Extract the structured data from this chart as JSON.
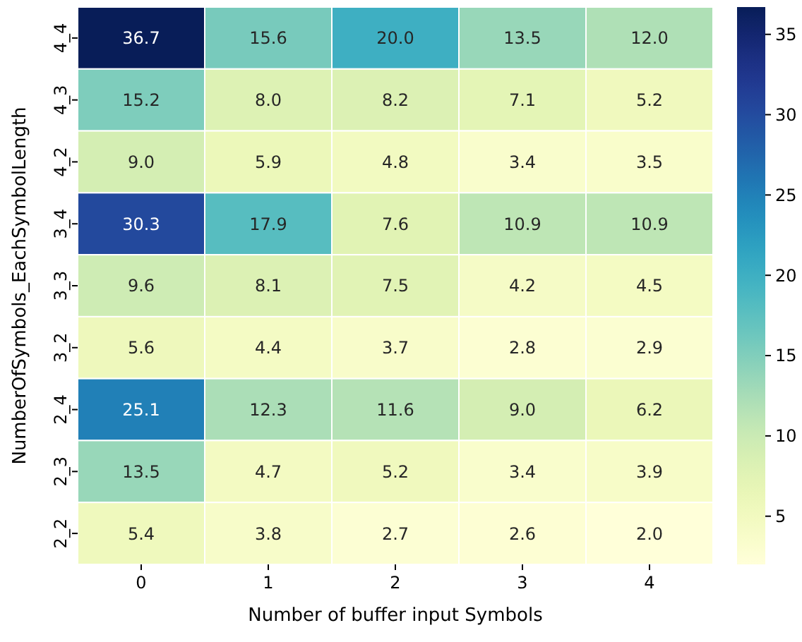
{
  "chart_data": {
    "type": "heatmap",
    "xlabel": "Number of buffer input Symbols",
    "ylabel": "NumberOfSymbols_EachSymbolLength",
    "categories": [
      "0",
      "1",
      "2",
      "3",
      "4"
    ],
    "y_categories": [
      "4_4",
      "4_3",
      "4_2",
      "3_4",
      "3_3",
      "3_2",
      "2_4",
      "2_3",
      "2_2"
    ],
    "cells": [
      [
        36.7,
        15.6,
        20.0,
        13.5,
        12.0
      ],
      [
        15.2,
        8.0,
        8.2,
        7.1,
        5.2
      ],
      [
        9.0,
        5.9,
        4.8,
        3.4,
        3.5
      ],
      [
        30.3,
        17.9,
        7.6,
        10.9,
        10.9
      ],
      [
        9.6,
        8.1,
        7.5,
        4.2,
        4.5
      ],
      [
        5.6,
        4.4,
        3.7,
        2.8,
        2.9
      ],
      [
        25.1,
        12.3,
        11.6,
        9.0,
        6.2
      ],
      [
        13.5,
        4.7,
        5.2,
        3.4,
        3.9
      ],
      [
        5.4,
        3.8,
        2.7,
        2.6,
        2.0
      ]
    ],
    "cell_labels": [
      [
        "36.7",
        "15.6",
        "20.0",
        "13.5",
        "12.0"
      ],
      [
        "15.2",
        "8.0",
        "8.2",
        "7.1",
        "5.2"
      ],
      [
        "9.0",
        "5.9",
        "4.8",
        "3.4",
        "3.5"
      ],
      [
        "30.3",
        "17.9",
        "7.6",
        "10.9",
        "10.9"
      ],
      [
        "9.6",
        "8.1",
        "7.5",
        "4.2",
        "4.5"
      ],
      [
        "5.6",
        "4.4",
        "3.7",
        "2.8",
        "2.9"
      ],
      [
        "25.1",
        "12.3",
        "11.6",
        "9.0",
        "6.2"
      ],
      [
        "13.5",
        "4.7",
        "5.2",
        "3.4",
        "3.9"
      ],
      [
        "5.4",
        "3.8",
        "2.7",
        "2.6",
        "2.0"
      ]
    ],
    "clim": [
      2.0,
      36.7
    ],
    "cticks": [
      5,
      10,
      15,
      20,
      25,
      30,
      35
    ]
  }
}
